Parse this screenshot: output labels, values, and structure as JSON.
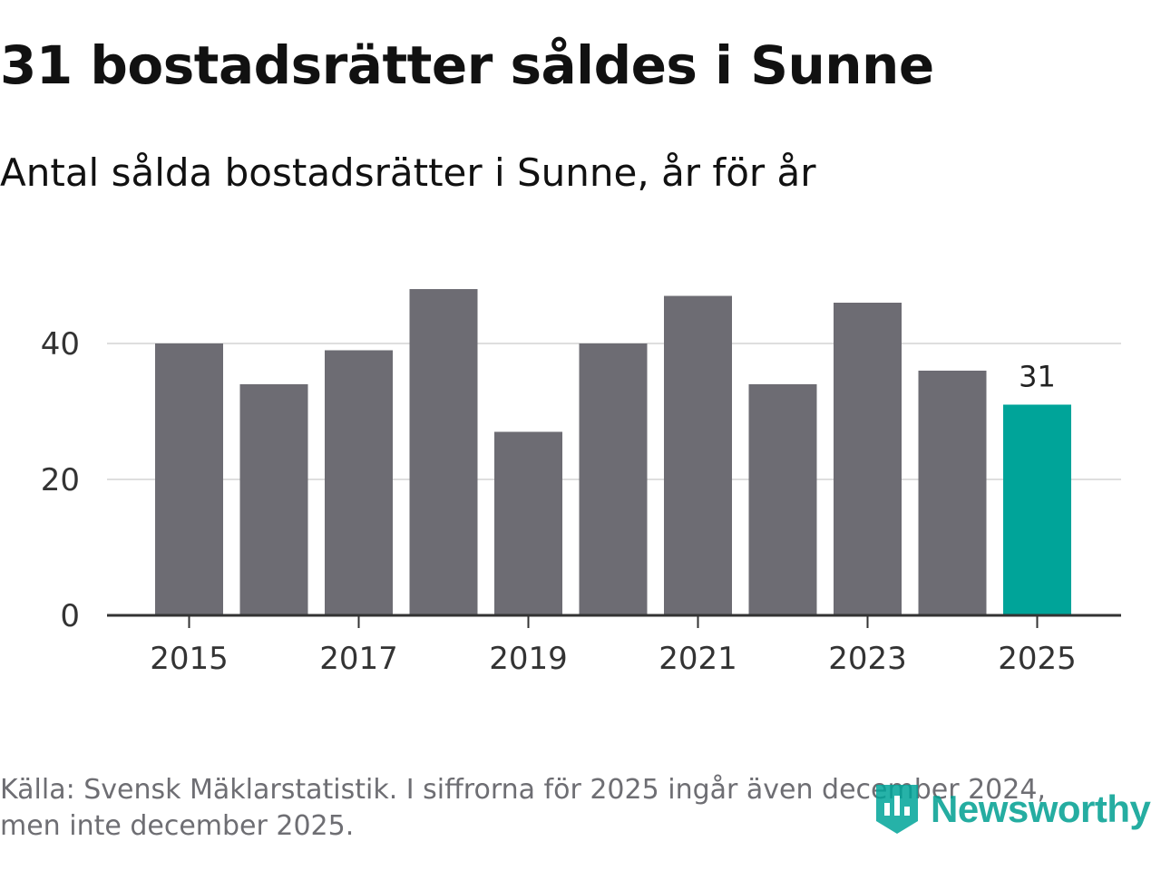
{
  "header": {
    "title": "31 bostadsrätter såldes i Sunne",
    "subtitle": "Antal sålda bostadsrätter i Sunne, år för år"
  },
  "chart_data": {
    "type": "bar",
    "title": "31 bostadsrätter såldes i Sunne",
    "subtitle": "Antal sålda bostadsrätter i Sunne, år för år",
    "categories": [
      "2015",
      "2016",
      "2017",
      "2018",
      "2019",
      "2020",
      "2021",
      "2022",
      "2023",
      "2024",
      "2025"
    ],
    "values": [
      40,
      34,
      39,
      48,
      27,
      40,
      47,
      34,
      46,
      36,
      31
    ],
    "x_tick_labels": [
      "2015",
      "2017",
      "2019",
      "2021",
      "2023",
      "2025"
    ],
    "y_ticks": [
      0,
      20,
      40
    ],
    "ylim": [
      0,
      50
    ],
    "xlabel": "",
    "ylabel": "",
    "grid": true,
    "highlight": {
      "category": "2025",
      "label": "31"
    },
    "colors": {
      "bar": "#6d6c73",
      "highlight": "#00a499",
      "grid": "#dedede",
      "axis": "#333333"
    }
  },
  "footer": {
    "source": "Källa: Svensk Mäklarstatistik. I siffrorna för 2025 ingår även december 2024, men inte december 2025.",
    "logo_text": "Newsworthy",
    "logo_icon": "newsworthy-logo-icon",
    "logo_color": "#00a499"
  }
}
